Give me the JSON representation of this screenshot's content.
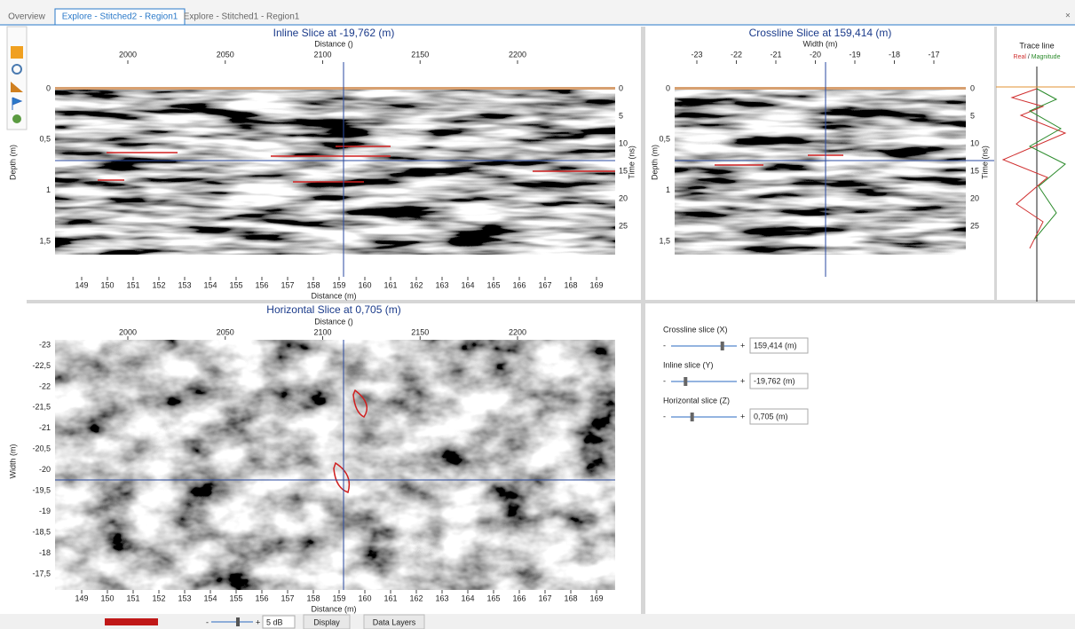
{
  "tabs": [
    "Overview",
    "Explore - Stitched2 - Region1",
    "Explore - Stitched1 - Region1"
  ],
  "inline": {
    "title": "Inline Slice at -19,762 (m)",
    "top_axis_label": "Distance ()",
    "top_ticks": [
      "2000",
      "2050",
      "2100",
      "2150",
      "2200"
    ],
    "bottom_axis_label": "Distance (m)",
    "bottom_ticks": [
      "149",
      "150",
      "151",
      "152",
      "153",
      "154",
      "155",
      "156",
      "157",
      "158",
      "159",
      "160",
      "161",
      "162",
      "163",
      "164",
      "165",
      "166",
      "167",
      "168",
      "169"
    ],
    "left_axis_label": "Depth (m)",
    "left_ticks": [
      "0",
      "0,5",
      "1",
      "1,5"
    ],
    "right_axis_label": "Time (ns)",
    "right_ticks": [
      "0",
      "5",
      "10",
      "15",
      "20",
      "25"
    ]
  },
  "crossline": {
    "title": "Crossline Slice at 159,414 (m)",
    "top_axis_label": "Width (m)",
    "top_ticks": [
      "-23",
      "-22",
      "-21",
      "-20",
      "-19",
      "-18",
      "-17"
    ],
    "left_axis_label": "Depth (m)",
    "left_ticks": [
      "0",
      "0,5",
      "1",
      "1,5"
    ],
    "right_axis_label": "Time (ns)",
    "right_ticks": [
      "0",
      "5",
      "10",
      "15",
      "20",
      "25"
    ]
  },
  "trace": {
    "title": "Trace line",
    "legend": [
      "Real",
      "Magnitude"
    ],
    "separator": "/"
  },
  "horizontal": {
    "title": "Horizontal Slice at 0,705 (m)",
    "top_axis_label": "Distance ()",
    "top_ticks": [
      "2000",
      "2050",
      "2100",
      "2150",
      "2200"
    ],
    "bottom_axis_label": "Distance (m)",
    "bottom_ticks": [
      "149",
      "150",
      "151",
      "152",
      "153",
      "154",
      "155",
      "156",
      "157",
      "158",
      "159",
      "160",
      "161",
      "162",
      "163",
      "164",
      "165",
      "166",
      "167",
      "168",
      "169"
    ],
    "left_axis_label": "Width (m)",
    "left_ticks": [
      "-23",
      "-22,5",
      "-22",
      "-21,5",
      "-21",
      "-20,5",
      "-20",
      "-19,5",
      "-19",
      "-18,5",
      "-18",
      "-17,5"
    ]
  },
  "controls": [
    {
      "label": "Crossline slice (X)",
      "value": "159,414 (m)",
      "pos": 0.78
    },
    {
      "label": "Inline slice (Y)",
      "value": "-19,762 (m)",
      "pos": 0.22
    },
    {
      "label": "Horizontal slice (Z)",
      "value": "0,705 (m)",
      "pos": 0.32
    }
  ],
  "slider_minus": "-",
  "slider_plus": "+",
  "toolbar": {
    "gain": "5 dB",
    "display": "Display",
    "data_layers": "Data Layers"
  }
}
